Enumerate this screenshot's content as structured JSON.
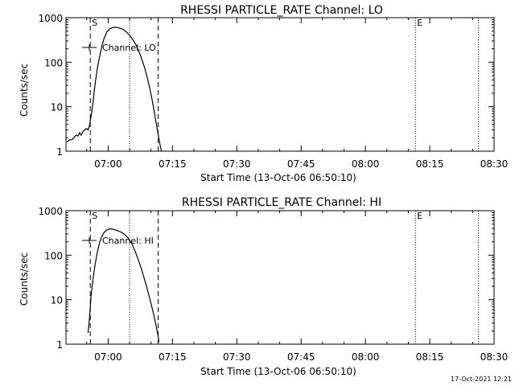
{
  "chart_data": [
    {
      "type": "line",
      "title": "RHESSI PARTICLE_RATE Channel: LO",
      "xlabel": "Start Time (13-Oct-06 06:50:10)",
      "ylabel": "Counts/sec",
      "yscale": "log",
      "ylim": [
        1,
        1000
      ],
      "xlim": [
        "06:50:10",
        "08:30:00"
      ],
      "ytick_values": [
        1,
        10,
        100,
        1000
      ],
      "ytick_labels": [
        "1",
        "10",
        "100",
        "1000"
      ],
      "xtick_values": [
        "07:00",
        "07:15",
        "07:30",
        "07:45",
        "08:00",
        "08:15",
        "08:30"
      ],
      "xtick_labels": [
        "07:00",
        "07:15",
        "07:30",
        "07:45",
        "08:00",
        "08:15",
        "08:30"
      ],
      "legend": {
        "label": "Channel: LO",
        "position": "top-left"
      },
      "markers": [
        {
          "time": "06:55:50",
          "style": "dashed",
          "label": "S"
        },
        {
          "time": "07:05:00",
          "style": "dotted",
          "label": ""
        },
        {
          "time": "07:11:40",
          "style": "dashed",
          "label": ""
        },
        {
          "time": "08:11:40",
          "style": "dotted",
          "label": "E"
        },
        {
          "time": "08:26:20",
          "style": "dotted",
          "label": ""
        }
      ],
      "series": [
        {
          "x": [
            "06:50:25",
            "06:51:00",
            "06:51:30",
            "06:52:00",
            "06:52:30",
            "06:53:00",
            "06:53:20",
            "06:53:40",
            "06:54:00",
            "06:54:20",
            "06:54:40",
            "06:55:00",
            "06:55:20",
            "06:55:40",
            "06:56:00",
            "06:56:30",
            "06:57:00",
            "06:57:30",
            "06:58:00",
            "06:58:30",
            "06:59:00",
            "06:59:40",
            "07:00:20",
            "07:01:00",
            "07:01:40",
            "07:02:20",
            "07:03:00",
            "07:03:40",
            "07:04:20",
            "07:05:00",
            "07:05:40",
            "07:06:20",
            "07:07:00",
            "07:07:40",
            "07:08:20",
            "07:09:00",
            "07:09:40",
            "07:10:20",
            "07:11:00",
            "07:11:40",
            "07:12:10",
            "07:12:25"
          ],
          "values": [
            1.6,
            1.8,
            1.8,
            2.0,
            2.3,
            2.2,
            2.6,
            2.3,
            2.6,
            2.9,
            3.1,
            3.2,
            3.0,
            3.8,
            6,
            13,
            35,
            75,
            130,
            220,
            330,
            470,
            560,
            600,
            610,
            600,
            570,
            530,
            470,
            400,
            330,
            260,
            190,
            130,
            85,
            50,
            27,
            13,
            5.5,
            2.4,
            1.3,
            1.0
          ]
        }
      ]
    },
    {
      "type": "line",
      "title": "RHESSI PARTICLE_RATE Channel: HI",
      "xlabel": "Start Time (13-Oct-06 06:50:10)",
      "ylabel": "Counts/sec",
      "yscale": "log",
      "ylim": [
        1,
        1000
      ],
      "xlim": [
        "06:50:10",
        "08:30:00"
      ],
      "ytick_values": [
        1,
        10,
        100,
        1000
      ],
      "ytick_labels": [
        "1",
        "10",
        "100",
        "1000"
      ],
      "xtick_values": [
        "07:00",
        "07:15",
        "07:30",
        "07:45",
        "08:00",
        "08:15",
        "08:30"
      ],
      "xtick_labels": [
        "07:00",
        "07:15",
        "07:30",
        "07:45",
        "08:00",
        "08:15",
        "08:30"
      ],
      "legend": {
        "label": "Channel: HI",
        "position": "top-left"
      },
      "markers": [
        {
          "time": "06:55:50",
          "style": "dashed",
          "label": "S"
        },
        {
          "time": "07:05:00",
          "style": "dotted",
          "label": ""
        },
        {
          "time": "07:11:40",
          "style": "dashed",
          "label": ""
        },
        {
          "time": "08:11:40",
          "style": "dotted",
          "label": "E"
        },
        {
          "time": "08:26:20",
          "style": "dotted",
          "label": ""
        }
      ],
      "series": [
        {
          "x": [
            "06:55:20",
            "06:55:40",
            "06:56:00",
            "06:56:30",
            "06:57:00",
            "06:57:30",
            "06:58:00",
            "06:58:30",
            "06:59:00",
            "06:59:40",
            "07:00:20",
            "07:01:00",
            "07:01:40",
            "07:02:20",
            "07:03:00",
            "07:03:40",
            "07:04:20",
            "07:05:00",
            "07:05:40",
            "07:06:20",
            "07:07:00",
            "07:07:40",
            "07:08:20",
            "07:09:00",
            "07:09:40",
            "07:10:20",
            "07:11:00",
            "07:11:20",
            "07:11:40",
            "07:11:50"
          ],
          "values": [
            1.8,
            4,
            12,
            30,
            65,
            120,
            190,
            260,
            320,
            370,
            390,
            385,
            370,
            350,
            330,
            300,
            265,
            220,
            170,
            120,
            80,
            52,
            32,
            19,
            11,
            6,
            3.2,
            2.2,
            1.5,
            1.1
          ]
        }
      ]
    }
  ],
  "footer": {
    "timestamp": "17-Oct-2021 12:21"
  }
}
